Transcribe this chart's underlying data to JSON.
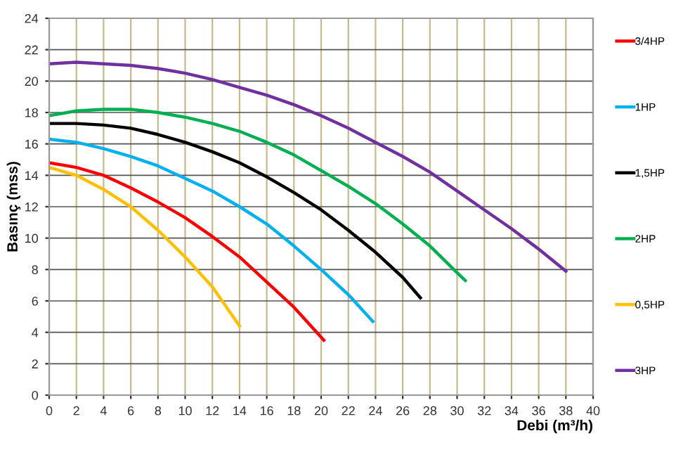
{
  "chart_data": {
    "type": "line",
    "xlabel": "Debi (m³/h)",
    "ylabel": "Basınç (mss)",
    "xlim": [
      0,
      40
    ],
    "ylim": [
      0,
      24
    ],
    "xticks": [
      0,
      2,
      4,
      6,
      8,
      10,
      12,
      14,
      16,
      18,
      20,
      22,
      24,
      26,
      28,
      30,
      32,
      34,
      36,
      38,
      40
    ],
    "yticks": [
      0,
      2,
      4,
      6,
      8,
      10,
      12,
      14,
      16,
      18,
      20,
      22,
      24
    ],
    "grid": true,
    "legend": "right",
    "marker": "none",
    "line_style": "solid",
    "series": [
      {
        "name": "3/4HP",
        "color": "#ff0000",
        "x": [
          0,
          2,
          4,
          6,
          8,
          10,
          12,
          14,
          16,
          18,
          20.2
        ],
        "values": [
          14.8,
          14.5,
          14.0,
          13.2,
          12.3,
          11.3,
          10.1,
          8.8,
          7.2,
          5.6,
          3.5
        ]
      },
      {
        "name": "1HP",
        "color": "#00b0f0",
        "x": [
          0,
          2,
          4,
          6,
          8,
          10,
          12,
          14,
          16,
          18,
          20,
          22,
          23.8
        ],
        "values": [
          16.3,
          16.1,
          15.7,
          15.2,
          14.6,
          13.8,
          13.0,
          12.0,
          10.9,
          9.5,
          8.0,
          6.4,
          4.7
        ]
      },
      {
        "name": "1,5HP",
        "color": "#000000",
        "x": [
          0,
          2,
          4,
          6,
          8,
          10,
          12,
          14,
          16,
          18,
          20,
          22,
          24,
          26,
          27.3
        ],
        "values": [
          17.3,
          17.3,
          17.2,
          17.0,
          16.6,
          16.1,
          15.5,
          14.8,
          13.9,
          12.9,
          11.8,
          10.5,
          9.1,
          7.5,
          6.2
        ]
      },
      {
        "name": "2HP",
        "color": "#00b050",
        "x": [
          0,
          2,
          4,
          6,
          8,
          10,
          12,
          14,
          16,
          18,
          20,
          22,
          24,
          26,
          28,
          30,
          30.6
        ],
        "values": [
          17.8,
          18.1,
          18.2,
          18.2,
          18.0,
          17.7,
          17.3,
          16.8,
          16.1,
          15.3,
          14.3,
          13.3,
          12.2,
          10.9,
          9.5,
          7.8,
          7.3
        ]
      },
      {
        "name": "0,5HP",
        "color": "#ffc000",
        "x": [
          0,
          2,
          4,
          6,
          8,
          10,
          12,
          14
        ],
        "values": [
          14.5,
          14.0,
          13.1,
          12.0,
          10.5,
          8.8,
          6.9,
          4.4
        ]
      },
      {
        "name": "3HP",
        "color": "#7030a0",
        "x": [
          0,
          2,
          4,
          6,
          8,
          10,
          12,
          14,
          16,
          18,
          20,
          22,
          24,
          26,
          28,
          30,
          32,
          34,
          36,
          38
        ],
        "values": [
          21.1,
          21.2,
          21.1,
          21.0,
          20.8,
          20.5,
          20.1,
          19.6,
          19.1,
          18.5,
          17.8,
          17.0,
          16.1,
          15.2,
          14.2,
          13.0,
          11.8,
          10.6,
          9.3,
          7.9
        ]
      }
    ]
  }
}
